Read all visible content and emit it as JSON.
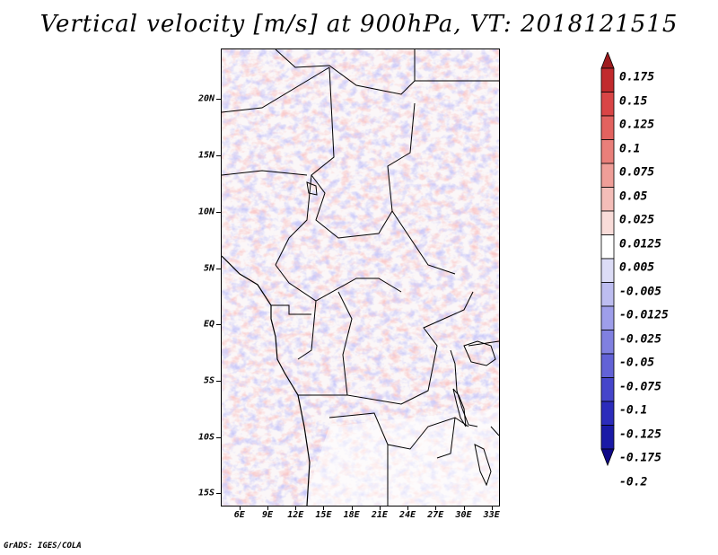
{
  "title": "Vertical velocity [m/s] at 900hPa, VT: 2018121515",
  "credit": "GrADS: IGES/COLA",
  "lat_ticks": [
    "20N",
    "15N",
    "10N",
    "5N",
    "EQ",
    "5S",
    "10S",
    "15S"
  ],
  "lat_values": [
    20,
    15,
    10,
    5,
    0,
    -5,
    -10,
    -15
  ],
  "lon_ticks": [
    "6E",
    "9E",
    "12E",
    "15E",
    "18E",
    "21E",
    "24E",
    "27E",
    "30E",
    "33E"
  ],
  "lon_values": [
    6,
    9,
    12,
    15,
    18,
    21,
    24,
    27,
    30,
    33
  ],
  "lat_range": [
    -16,
    24.5
  ],
  "lon_range": [
    4,
    33.7
  ],
  "colorbar": {
    "labels": [
      "0.175",
      "0.15",
      "0.125",
      "0.1",
      "0.075",
      "0.05",
      "0.025",
      "0.0125",
      "0.005",
      "-0.005",
      "-0.0125",
      "-0.025",
      "-0.05",
      "-0.075",
      "-0.1",
      "-0.125",
      "-0.175",
      "-0.2"
    ],
    "colors": [
      "#9e1b1e",
      "#c12a2d",
      "#d94546",
      "#e2625f",
      "#e97f7a",
      "#ef9e98",
      "#f4bdb8",
      "#f9dcd9",
      "#ffffff",
      "#dcdcf6",
      "#bdbdf0",
      "#9e9eea",
      "#8080e0",
      "#6262d6",
      "#4545ca",
      "#2c2cbb",
      "#1a1aa6",
      "#100a88"
    ]
  }
}
